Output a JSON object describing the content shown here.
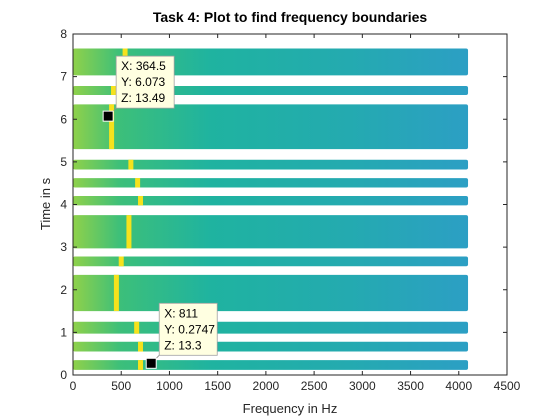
{
  "chart_data": {
    "type": "heatmap",
    "title": "Task 4: Plot to find frequency boundaries",
    "xlabel": "Frequency in Hz",
    "ylabel": "Time in s",
    "xlim": [
      0,
      4500
    ],
    "ylim": [
      0,
      8
    ],
    "xticks": [
      "0",
      "500",
      "1000",
      "1500",
      "2000",
      "2500",
      "3000",
      "3500",
      "4000",
      "4500"
    ],
    "yticks": [
      "0",
      "1",
      "2",
      "3",
      "4",
      "5",
      "6",
      "7",
      "8"
    ],
    "grid": false,
    "colormap": "parula",
    "frequency_range": [
      0,
      4096
    ],
    "background_color": "#1fb3a0",
    "tone_color": "#f5e21c",
    "segments": [
      {
        "t_start": 0.12,
        "t_end": 0.35,
        "tone_hz": 700
      },
      {
        "t_start": 0.55,
        "t_end": 0.78,
        "tone_hz": 700
      },
      {
        "t_start": 0.97,
        "t_end": 1.25,
        "tone_hz": 660
      },
      {
        "t_start": 1.5,
        "t_end": 2.35,
        "tone_hz": 450
      },
      {
        "t_start": 2.55,
        "t_end": 2.78,
        "tone_hz": 500
      },
      {
        "t_start": 2.97,
        "t_end": 3.75,
        "tone_hz": 580
      },
      {
        "t_start": 3.98,
        "t_end": 4.2,
        "tone_hz": 700
      },
      {
        "t_start": 4.4,
        "t_end": 4.62,
        "tone_hz": 670
      },
      {
        "t_start": 4.82,
        "t_end": 5.05,
        "tone_hz": 600
      },
      {
        "t_start": 5.3,
        "t_end": 6.35,
        "tone_hz": 400
      },
      {
        "t_start": 6.57,
        "t_end": 6.78,
        "tone_hz": 420
      },
      {
        "t_start": 7.03,
        "t_end": 7.66,
        "tone_hz": 540
      }
    ],
    "datatips": [
      {
        "x": 364.5,
        "y": 6.073,
        "lines": [
          "X: 364.5",
          "Y: 6.073",
          "Z: 13.49"
        ],
        "placement": "top-right"
      },
      {
        "x": 811,
        "y": 0.2747,
        "lines": [
          "X: 811",
          "Y: 0.2747",
          "Z: 13.3"
        ],
        "placement": "top-right"
      }
    ]
  }
}
